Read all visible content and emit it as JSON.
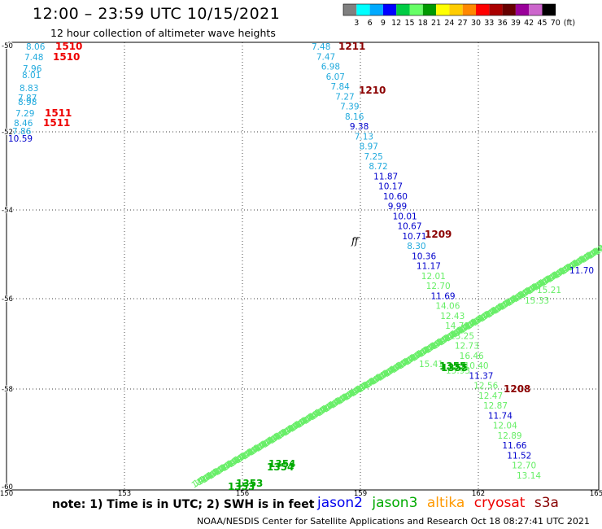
{
  "header": {
    "title": "12:00 – 23:59 UTC 10/15/2021",
    "subtitle": "12 hour collection of altimeter wave heights"
  },
  "color_scale": {
    "unit": "(ft)",
    "labels": [
      "3",
      "6",
      "9",
      "12",
      "15",
      "18",
      "21",
      "24",
      "27",
      "30",
      "33",
      "36",
      "39",
      "42",
      "45",
      "70"
    ],
    "colors": [
      "#808080",
      "#00ffff",
      "#00aaff",
      "#0000ff",
      "#00cc44",
      "#66ff66",
      "#009900",
      "#ffff00",
      "#ffcc00",
      "#ff8800",
      "#ff0000",
      "#aa0000",
      "#660000",
      "#990099",
      "#cc66cc",
      "#000000"
    ]
  },
  "axes": {
    "lat_labels": [
      "-50",
      "-52",
      "-54",
      "-56",
      "-58",
      "-60"
    ],
    "lon_labels": [
      "150",
      "153",
      "156",
      "159",
      "162",
      "165"
    ]
  },
  "swh_colors": {
    "light_blue": "#22aadd",
    "blue": "#0000cc",
    "light_green": "#66ee66",
    "green": "#00aa00",
    "dark_red": "#8b0000",
    "red": "#ee0000"
  },
  "track_west": {
    "values": [
      "8.06",
      "7.48",
      "7.96",
      "8.01",
      "8.83",
      "7.87",
      "8.98",
      "7.29",
      "8.46",
      "7.86",
      "10.59"
    ],
    "colors": [
      "light_blue",
      "light_blue",
      "light_blue",
      "light_blue",
      "light_blue",
      "light_blue",
      "light_blue",
      "light_blue",
      "light_blue",
      "light_blue",
      "blue"
    ],
    "times": [
      "1510",
      "1510",
      "1511",
      "1511"
    ]
  },
  "track_central": {
    "values": [
      "7.48",
      "7.47",
      "6.98",
      "6.07",
      "7.84",
      "7.27",
      "7.39",
      "8.16",
      "9.38",
      "7.13",
      "8.97",
      "7.25",
      "8.72",
      "11.87",
      "10.17",
      "10.60",
      "9.99",
      "10.01",
      "10.67",
      "10.71",
      "8.30",
      "10.36",
      "11.17",
      "12.01",
      "12.70",
      "11.69",
      "14.06",
      "12.43",
      "14.71",
      "13.25",
      "12.73",
      "16.46",
      "10.40",
      "11.37",
      "12.56",
      "12.47",
      "12.87",
      "11.74",
      "12.04",
      "12.89",
      "11.66",
      "11.52",
      "12.70",
      "13.14"
    ],
    "colors": [
      "light_blue",
      "light_blue",
      "light_blue",
      "light_blue",
      "light_blue",
      "light_blue",
      "light_blue",
      "light_blue",
      "blue",
      "light_blue",
      "light_blue",
      "light_blue",
      "light_blue",
      "blue",
      "blue",
      "blue",
      "blue",
      "blue",
      "blue",
      "blue",
      "light_blue",
      "blue",
      "blue",
      "light_green",
      "light_green",
      "blue",
      "light_green",
      "light_green",
      "light_green",
      "light_green",
      "light_green",
      "light_green",
      "light_green",
      "blue",
      "light_green",
      "light_green",
      "light_green",
      "blue",
      "light_green",
      "light_green",
      "blue",
      "blue",
      "light_green",
      "light_green"
    ],
    "times": [
      "1211",
      "1210",
      "1209",
      "1208"
    ]
  },
  "track_diagonal": {
    "visible_values": [
      "11.70",
      "15.21",
      "15.33",
      "15.41",
      "15.93",
      "1353",
      "1353",
      "1354",
      "1354",
      "1355",
      "1355"
    ],
    "repeat_value": "14"
  },
  "misc": {
    "marker_glyph": "ff"
  },
  "footer": {
    "note": "note: 1) Time is in UTC; 2) SWH is in feet",
    "satellites": [
      {
        "name": "jason2",
        "color": "#0000ee"
      },
      {
        "name": "jason3",
        "color": "#00aa00"
      },
      {
        "name": "altika",
        "color": "#ff9900"
      },
      {
        "name": "cryosat",
        "color": "#ee0000"
      },
      {
        "name": "s3a",
        "color": "#880000"
      }
    ],
    "credit": "NOAA/NESDIS Center for Satellite Applications and Research     Oct 18 08:27:41 UTC 2021"
  }
}
